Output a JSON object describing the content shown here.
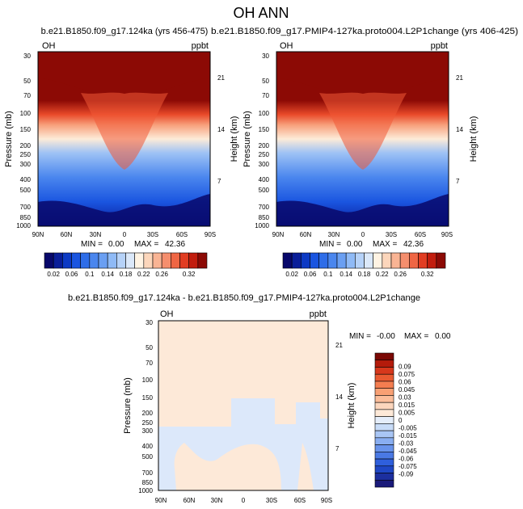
{
  "title": "OH ANN",
  "colormap_top": [
    "#08086b",
    "#0a1e99",
    "#0d3ac4",
    "#1a55e0",
    "#2e6de8",
    "#4a86ee",
    "#6a9ff2",
    "#8fbaf6",
    "#b6d2f8",
    "#dbe8f9",
    "#fff3e3",
    "#fcd6bb",
    "#f9b494",
    "#f58e6d",
    "#ef6644",
    "#e13d22",
    "#c21d0e",
    "#8c0a05"
  ],
  "colormap_diff": [
    "#1a1a7a",
    "#1c2f9f",
    "#1f47c5",
    "#2f5fdc",
    "#4a79e4",
    "#6893eb",
    "#89aef1",
    "#a9c6f5",
    "#c8dcf8",
    "#e5eefb",
    "#fde9d8",
    "#fcd6bd",
    "#fbbd9a",
    "#f8a074",
    "#f47d50",
    "#e95a31",
    "#d7381c",
    "#b41b0b",
    "#7a0804"
  ],
  "panels": [
    {
      "subtitle": "b.e21.B1850.f09_g17.124ka (yrs 456-475)",
      "variable": "OH",
      "units": "ppbt",
      "min_label": "MIN =",
      "min_value": "0.00",
      "max_label": "MAX =",
      "max_value": "42.36"
    },
    {
      "subtitle": "b.e21.B1850.f09_g17.PMIP4-127ka.proto004.L2P1change (yrs 406-425)",
      "variable": "OH",
      "units": "ppbt",
      "min_label": "MIN =",
      "min_value": "0.00",
      "max_label": "MAX =",
      "max_value": "42.36"
    },
    {
      "subtitle": "b.e21.B1850.f09_g17.124ka - b.e21.B1850.f09_g17.PMIP4-127ka.proto004.L2P1change",
      "variable": "OH",
      "units": "ppbt",
      "min_label": "MIN =",
      "min_value": "-0.00",
      "max_label": "MAX =",
      "max_value": "0.00"
    }
  ],
  "chart_data": [
    {
      "type": "heatmap",
      "title": "b.e21.B1850.f09_g17.124ka (yrs 456-475)",
      "xlabel": "",
      "ylabel": "Pressure (mb)",
      "y2label": "Height (km)",
      "x_ticks": [
        "90N",
        "60N",
        "30N",
        "0",
        "30S",
        "60S",
        "90S"
      ],
      "y_ticks": [
        "30",
        "50",
        "70",
        "100",
        "150",
        "200",
        "250",
        "300",
        "400",
        "500",
        "700",
        "850",
        "1000"
      ],
      "y2_ticks": [
        "21",
        "14",
        "7"
      ],
      "xlim": [
        90,
        -90
      ],
      "ylim": [
        30,
        1000
      ],
      "colorbar_labels": [
        "0.02",
        "0.06",
        "0.1",
        "0.14",
        "0.18",
        "0.22",
        "0.26",
        "0.32"
      ],
      "min": 0.0,
      "max": 42.36
    },
    {
      "type": "heatmap",
      "title": "b.e21.B1850.f09_g17.PMIP4-127ka.proto004.L2P1change (yrs 406-425)",
      "xlabel": "",
      "ylabel": "Pressure (mb)",
      "y2label": "Height (km)",
      "x_ticks": [
        "90N",
        "60N",
        "30N",
        "0",
        "30S",
        "60S",
        "90S"
      ],
      "y_ticks": [
        "30",
        "50",
        "70",
        "100",
        "150",
        "200",
        "250",
        "300",
        "400",
        "500",
        "700",
        "850",
        "1000"
      ],
      "y2_ticks": [
        "21",
        "14",
        "7"
      ],
      "xlim": [
        90,
        -90
      ],
      "ylim": [
        30,
        1000
      ],
      "colorbar_labels": [
        "0.02",
        "0.06",
        "0.1",
        "0.14",
        "0.18",
        "0.22",
        "0.26",
        "0.32"
      ],
      "min": 0.0,
      "max": 42.36
    },
    {
      "type": "heatmap",
      "title": "b.e21.B1850.f09_g17.124ka - b.e21.B1850.f09_g17.PMIP4-127ka.proto004.L2P1change",
      "xlabel": "",
      "ylabel": "Pressure (mb)",
      "y2label": "Height (km)",
      "x_ticks": [
        "90N",
        "60N",
        "30N",
        "0",
        "30S",
        "60S",
        "90S"
      ],
      "y_ticks": [
        "30",
        "50",
        "70",
        "100",
        "150",
        "200",
        "250",
        "300",
        "400",
        "500",
        "700",
        "850",
        "1000"
      ],
      "y2_ticks": [
        "21",
        "14",
        "7"
      ],
      "xlim": [
        90,
        -90
      ],
      "ylim": [
        30,
        1000
      ],
      "colorbar_labels": [
        "0.09",
        "0.075",
        "0.06",
        "0.045",
        "0.03",
        "0.015",
        "0.005",
        "0",
        "-0.005",
        "-0.015",
        "-0.03",
        "-0.045",
        "-0.06",
        "-0.075",
        "-0.09"
      ],
      "min": -0.0,
      "max": 0.0
    }
  ]
}
